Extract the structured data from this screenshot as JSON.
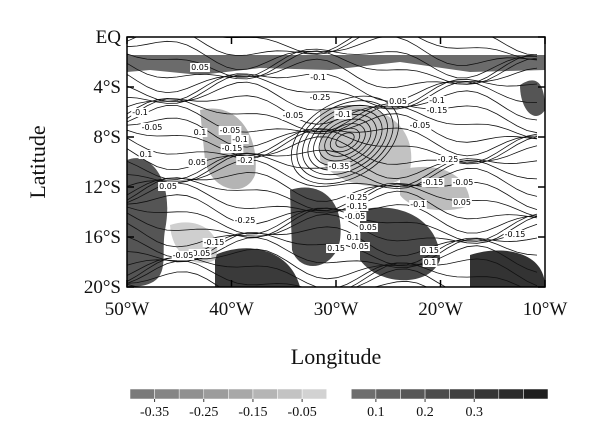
{
  "chart_data": {
    "type": "contour-map",
    "xlabel": "Longitude",
    "ylabel": "Latitude",
    "xlim": [
      -50,
      -10
    ],
    "ylim": [
      -20,
      0
    ],
    "xticks": [
      {
        "value": -50,
        "label": "50°W"
      },
      {
        "value": -40,
        "label": "40°W"
      },
      {
        "value": -30,
        "label": "30°W"
      },
      {
        "value": -20,
        "label": "20°W"
      },
      {
        "value": -10,
        "label": "10°W"
      }
    ],
    "yticks": [
      {
        "value": 0,
        "label": "EQ"
      },
      {
        "value": -4,
        "label": "4°S"
      },
      {
        "value": -8,
        "label": "8°S"
      },
      {
        "value": -12,
        "label": "12°S"
      },
      {
        "value": -16,
        "label": "16°S"
      },
      {
        "value": -20,
        "label": "20°S"
      }
    ],
    "contour_labels": [
      0.05,
      -0.1,
      -0.25,
      0.05,
      -0.1,
      -0.15,
      -0.05,
      -0.1,
      -0.05,
      0.1,
      -0.05,
      -0.1,
      -0.15,
      -0.05,
      -0.1,
      -0.2,
      0.1,
      0.05,
      0.05,
      -0.35,
      -0.25,
      -0.15,
      -0.05,
      -0.25,
      -0.15,
      -0.05,
      -0.1,
      0.05,
      -0.25,
      0.05,
      0.1,
      0.05,
      0.15,
      -0.15,
      -0.05,
      -0.05,
      0.15,
      0.1,
      -0.15
    ],
    "colorbar": {
      "lim": [
        -0.4,
        0.45
      ],
      "ticks": [
        -0.35,
        -0.25,
        -0.15,
        -0.05,
        0.1,
        0.2,
        0.3
      ],
      "colors": [
        "#7a7a7a",
        "#858585",
        "#909090",
        "#9c9c9c",
        "#a8a8a8",
        "#b5b5b5",
        "#c3c3c3",
        "#d2d2d2",
        "#ffffff",
        "#6e6e6e",
        "#626262",
        "#575757",
        "#4c4c4c",
        "#414141",
        "#363636",
        "#2b2b2b",
        "#1f1f1f"
      ]
    }
  }
}
